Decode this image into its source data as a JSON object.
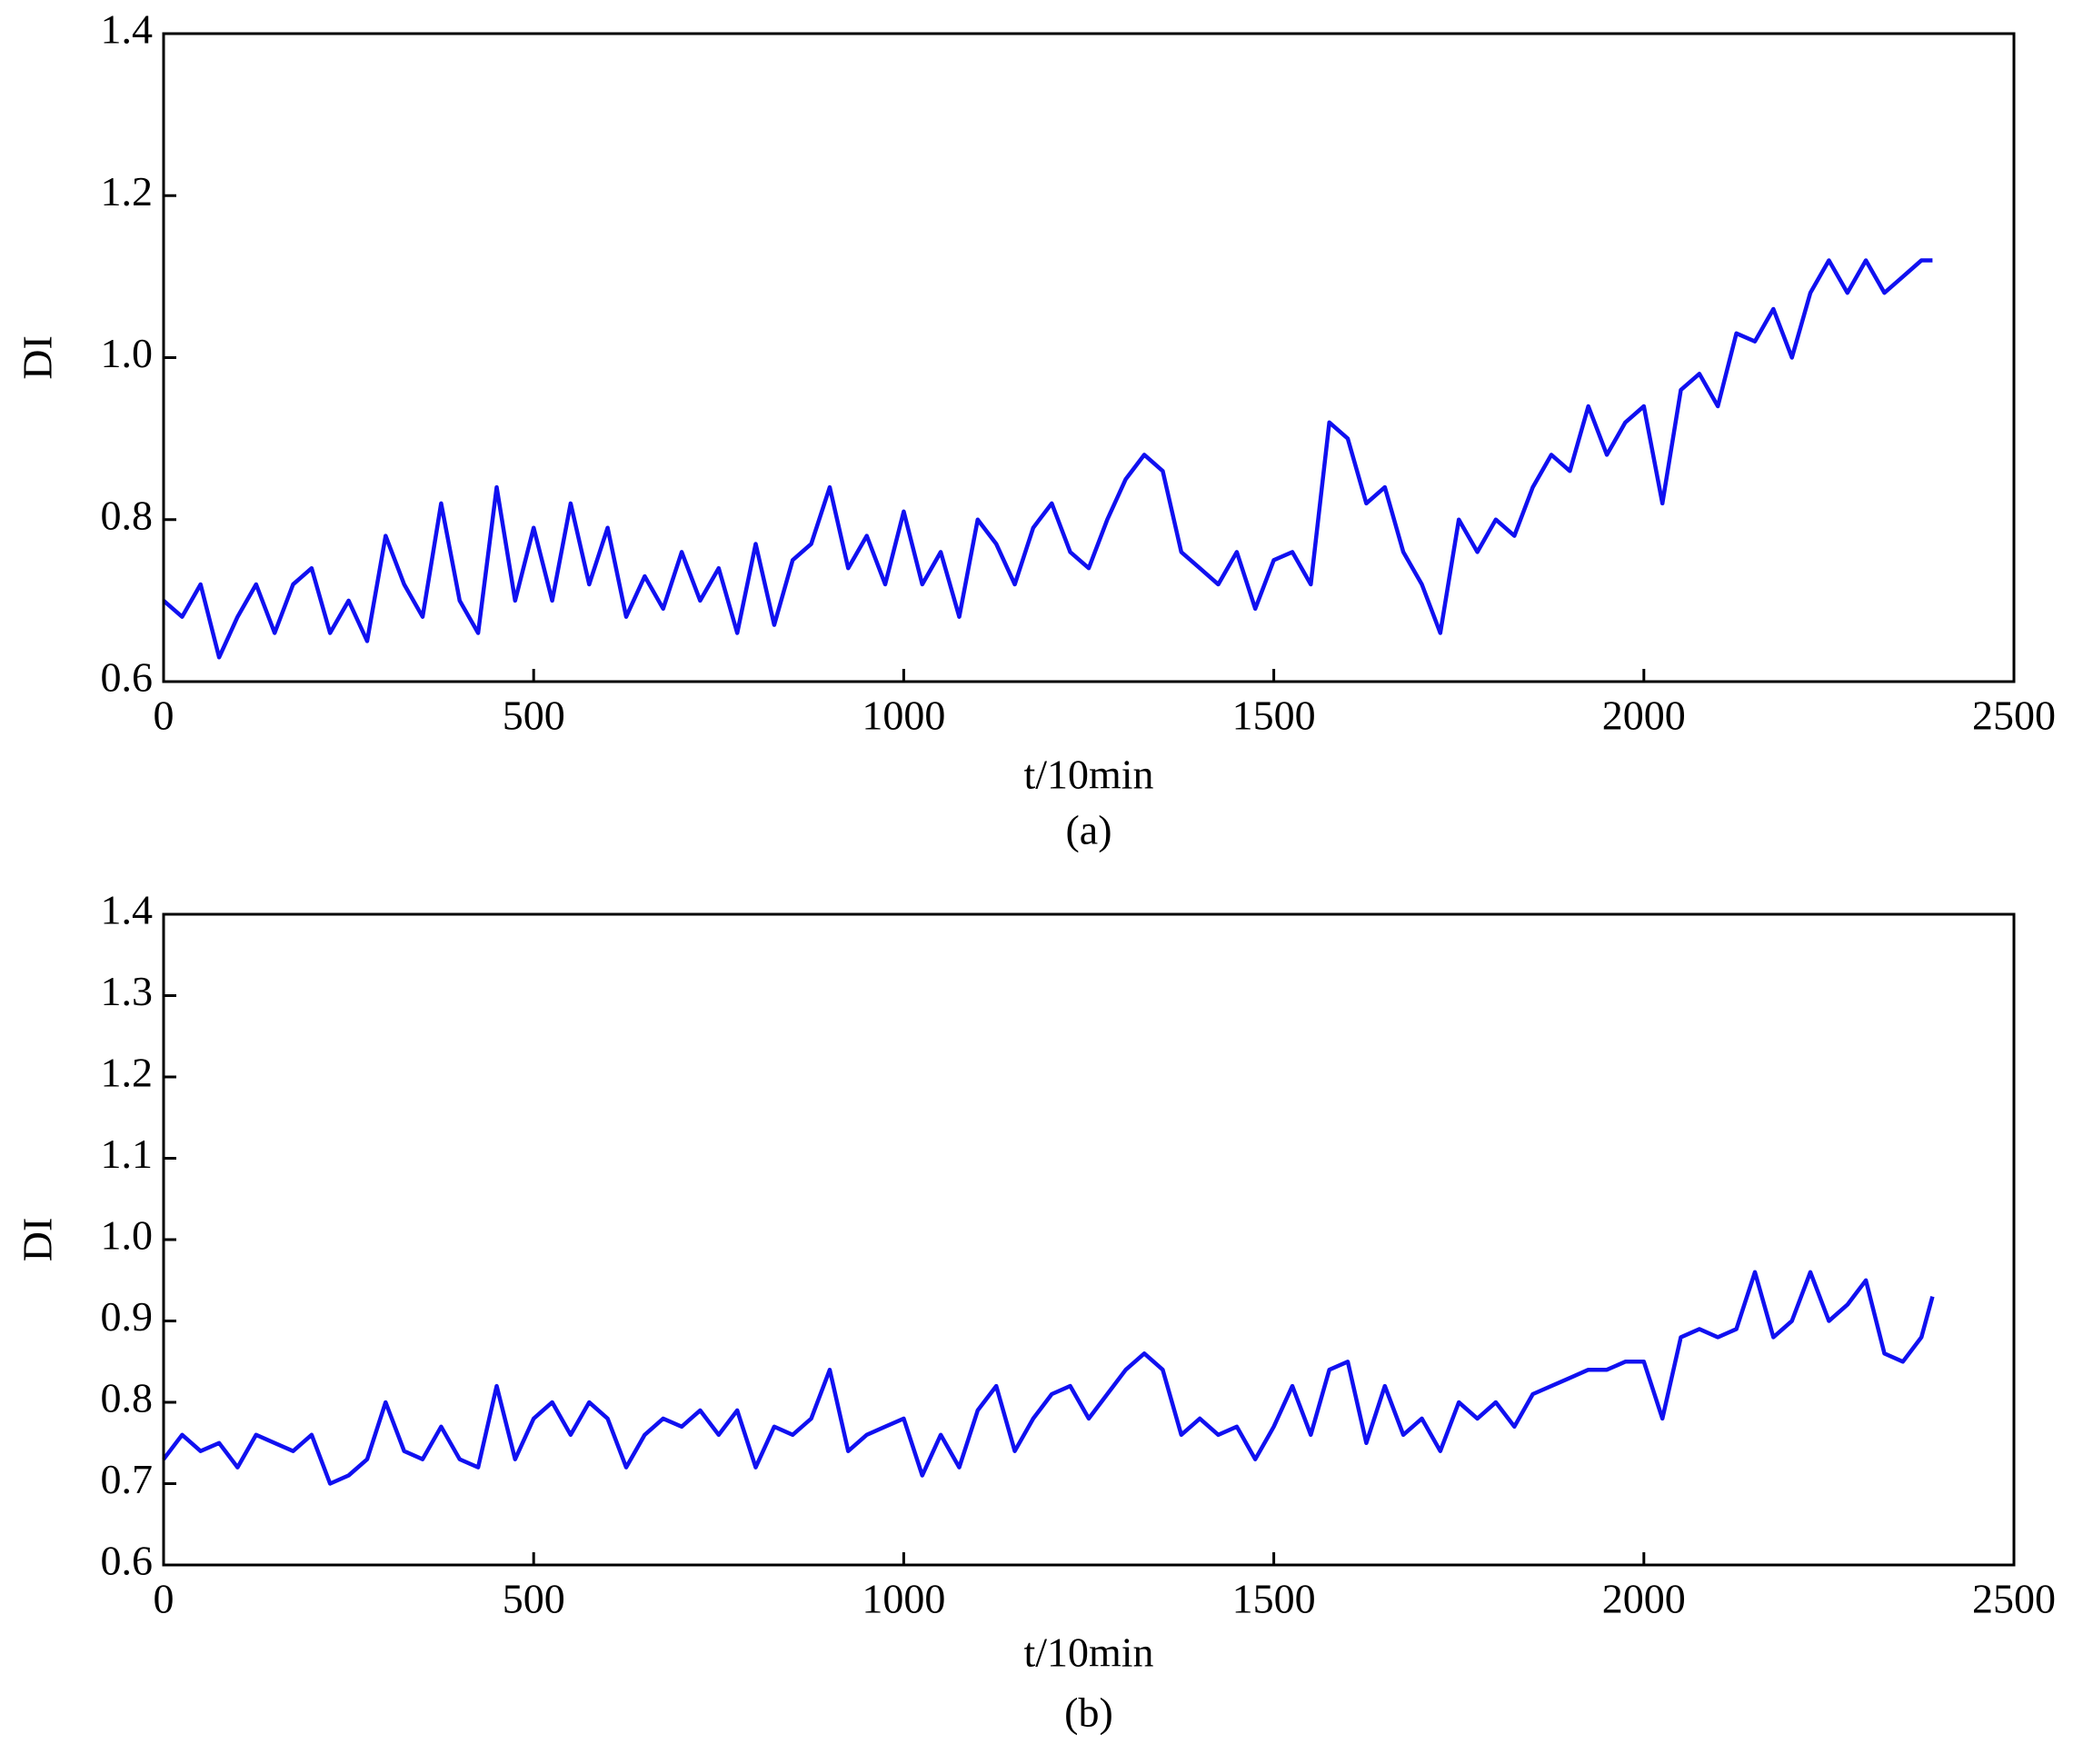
{
  "chart_data": [
    {
      "type": "line",
      "caption": "(a)",
      "xlabel": "t/10min",
      "ylabel": "DI",
      "color": "#1010f0",
      "x": [
        0,
        25,
        50,
        75,
        100,
        125,
        150,
        175,
        200,
        225,
        250,
        275,
        300,
        325,
        350,
        375,
        400,
        425,
        450,
        475,
        500,
        525,
        550,
        575,
        600,
        625,
        650,
        675,
        700,
        725,
        750,
        775,
        800,
        825,
        850,
        875,
        900,
        925,
        950,
        975,
        1000,
        1025,
        1050,
        1075,
        1100,
        1125,
        1150,
        1175,
        1200,
        1225,
        1250,
        1275,
        1300,
        1325,
        1350,
        1375,
        1400,
        1425,
        1450,
        1475,
        1500,
        1525,
        1550,
        1575,
        1600,
        1625,
        1650,
        1675,
        1700,
        1725,
        1750,
        1775,
        1800,
        1825,
        1850,
        1875,
        1900,
        1925,
        1950,
        1975,
        2000,
        2025,
        2050,
        2075,
        2100,
        2125,
        2150,
        2175,
        2200,
        2225,
        2250,
        2275,
        2300,
        2325,
        2350,
        2375,
        2390
      ],
      "values": [
        0.7,
        0.68,
        0.72,
        0.63,
        0.68,
        0.72,
        0.66,
        0.72,
        0.74,
        0.66,
        0.7,
        0.65,
        0.78,
        0.72,
        0.68,
        0.82,
        0.7,
        0.66,
        0.84,
        0.7,
        0.79,
        0.7,
        0.82,
        0.72,
        0.79,
        0.68,
        0.73,
        0.69,
        0.76,
        0.7,
        0.74,
        0.66,
        0.77,
        0.67,
        0.75,
        0.77,
        0.84,
        0.74,
        0.78,
        0.72,
        0.81,
        0.72,
        0.76,
        0.68,
        0.8,
        0.77,
        0.72,
        0.79,
        0.82,
        0.76,
        0.74,
        0.8,
        0.85,
        0.88,
        0.86,
        0.76,
        0.74,
        0.72,
        0.76,
        0.69,
        0.75,
        0.76,
        0.72,
        0.92,
        0.9,
        0.82,
        0.84,
        0.76,
        0.72,
        0.66,
        0.8,
        0.76,
        0.8,
        0.78,
        0.84,
        0.88,
        0.86,
        0.94,
        0.88,
        0.92,
        0.94,
        0.82,
        0.96,
        0.98,
        0.94,
        1.03,
        1.02,
        1.06,
        1.0,
        1.08,
        1.12,
        1.08,
        1.12,
        1.08,
        1.1,
        1.12,
        1.12
      ],
      "xlim": [
        0,
        2500
      ],
      "xticks": [
        0,
        500,
        1000,
        1500,
        2000,
        2500
      ],
      "ylim": [
        0.6,
        1.4
      ],
      "yticks": [
        0.6,
        0.8,
        {
          "value": 1,
          "label": "1.0"
        },
        1.2,
        1.4
      ]
    },
    {
      "type": "line",
      "caption": "(b)",
      "xlabel": "t/10min",
      "ylabel": "DI",
      "color": "#1010f0",
      "x": [
        0,
        25,
        50,
        75,
        100,
        125,
        150,
        175,
        200,
        225,
        250,
        275,
        300,
        325,
        350,
        375,
        400,
        425,
        450,
        475,
        500,
        525,
        550,
        575,
        600,
        625,
        650,
        675,
        700,
        725,
        750,
        775,
        800,
        825,
        850,
        875,
        900,
        925,
        950,
        975,
        1000,
        1025,
        1050,
        1075,
        1100,
        1125,
        1150,
        1175,
        1200,
        1225,
        1250,
        1275,
        1300,
        1325,
        1350,
        1375,
        1400,
        1425,
        1450,
        1475,
        1500,
        1525,
        1550,
        1575,
        1600,
        1625,
        1650,
        1675,
        1700,
        1725,
        1750,
        1775,
        1800,
        1825,
        1850,
        1875,
        1900,
        1925,
        1950,
        1975,
        2000,
        2025,
        2050,
        2075,
        2100,
        2125,
        2150,
        2175,
        2200,
        2225,
        2250,
        2275,
        2300,
        2325,
        2350,
        2375,
        2390
      ],
      "values": [
        0.73,
        0.76,
        0.74,
        0.75,
        0.72,
        0.76,
        0.75,
        0.74,
        0.76,
        0.7,
        0.71,
        0.73,
        0.8,
        0.74,
        0.73,
        0.77,
        0.73,
        0.72,
        0.82,
        0.73,
        0.78,
        0.8,
        0.76,
        0.8,
        0.78,
        0.72,
        0.76,
        0.78,
        0.77,
        0.79,
        0.76,
        0.79,
        0.72,
        0.77,
        0.76,
        0.78,
        0.84,
        0.74,
        0.76,
        0.77,
        0.78,
        0.71,
        0.76,
        0.72,
        0.79,
        0.82,
        0.74,
        0.78,
        0.81,
        0.82,
        0.78,
        0.81,
        0.84,
        0.86,
        0.84,
        0.76,
        0.78,
        0.76,
        0.77,
        0.73,
        0.77,
        0.82,
        0.76,
        0.84,
        0.85,
        0.75,
        0.82,
        0.76,
        0.78,
        0.74,
        0.8,
        0.78,
        0.8,
        0.77,
        0.81,
        0.82,
        0.83,
        0.84,
        0.84,
        0.85,
        0.85,
        0.78,
        0.88,
        0.89,
        0.88,
        0.89,
        0.96,
        0.88,
        0.9,
        0.96,
        0.9,
        0.92,
        0.95,
        0.86,
        0.85,
        0.88,
        0.93
      ],
      "xlim": [
        0,
        2500
      ],
      "xticks": [
        0,
        500,
        1000,
        1500,
        2000,
        2500
      ],
      "ylim": [
        0.6,
        1.4
      ],
      "yticks": [
        0.6,
        0.7,
        0.8,
        0.9,
        {
          "value": 1,
          "label": "1.0"
        },
        1.1,
        1.2,
        1.3,
        1.4
      ]
    }
  ]
}
